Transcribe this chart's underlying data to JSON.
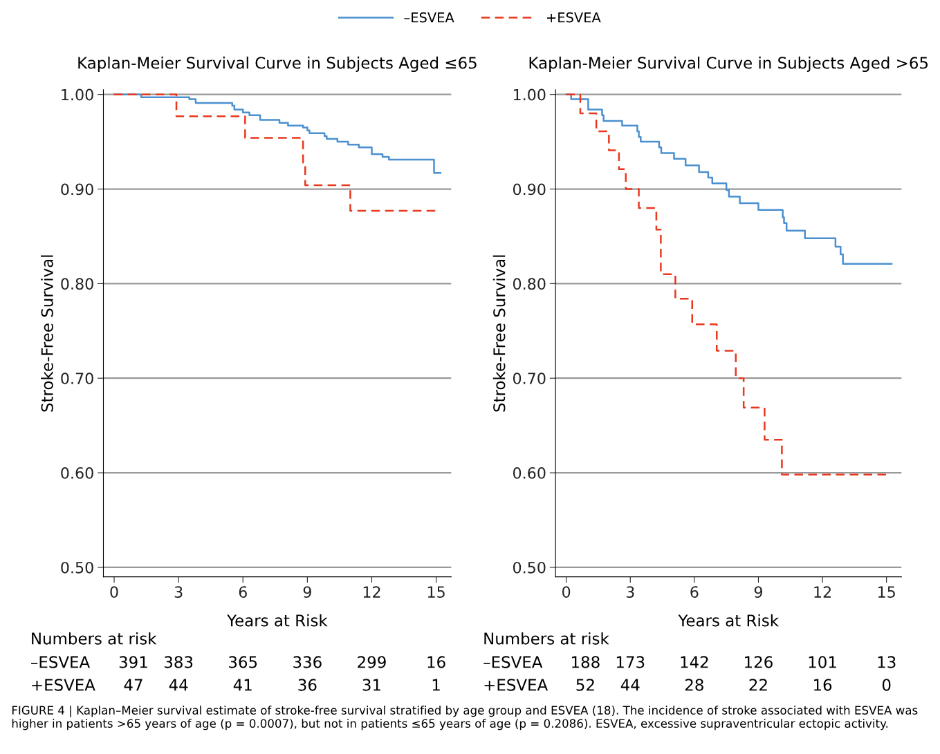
{
  "chart_data": [
    {
      "type": "step",
      "title": "Kaplan-Meier Survival Curve in Subjects Aged ≤65",
      "xlabel": "Years at Risk",
      "ylabel": "Stroke-Free Survival",
      "xlim": [
        -0.5,
        15.7
      ],
      "ylim": [
        0.49,
        1.005
      ],
      "xticks": [
        0,
        3,
        6,
        9,
        12,
        15
      ],
      "yticks": [
        {
          "value": 0.5,
          "label": "0.50"
        },
        {
          "value": 0.6,
          "label": "0.60"
        },
        {
          "value": 0.7,
          "label": "0.70"
        },
        {
          "value": 0.8,
          "label": "0.80"
        },
        {
          "value": 0.9,
          "label": "0.90"
        },
        {
          "value": 1.0,
          "label": "1.00"
        }
      ],
      "grid": "y",
      "legend": "top",
      "marker": "none",
      "series": [
        {
          "name": "–ESVEA",
          "color": "#4a90d0",
          "line_style": "solid",
          "x": [
            0,
            1.26,
            3.5,
            3.8,
            5.5,
            5.6,
            6.0,
            6.3,
            6.8,
            7.7,
            8.1,
            8.8,
            9.0,
            9.1,
            9.8,
            9.9,
            10.4,
            10.9,
            11.4,
            12.0,
            12.5,
            12.8,
            14.9,
            15.2
          ],
          "values": [
            1.0,
            0.997,
            0.995,
            0.991,
            0.988,
            0.984,
            0.981,
            0.978,
            0.973,
            0.97,
            0.967,
            0.965,
            0.962,
            0.959,
            0.956,
            0.953,
            0.95,
            0.947,
            0.944,
            0.937,
            0.934,
            0.931,
            0.917,
            0.917
          ]
        },
        {
          "name": "+ESVEA",
          "color": "#e8381e",
          "line_style": "dashed",
          "x": [
            0,
            2.9,
            6.1,
            8.8,
            8.9,
            11.0,
            15.05
          ],
          "values": [
            1.0,
            0.977,
            0.954,
            0.928,
            0.904,
            0.877,
            0.877
          ]
        }
      ],
      "annotations": [
        "Numbers at risk",
        "–ESVEA",
        "391",
        "383",
        "365",
        "336",
        "299",
        "16",
        "+ESVEA",
        "47",
        "44",
        "41",
        "36",
        "31",
        "1",
        "FIGURE 4 | Kaplan–Meier survival estimate of stroke-free survival stratified by age group and ESVEA (18). The incidence of stroke associated with ESVEA was higher in patients >65 years of age (p = 0.0007), but not in patients ≤65 years of age (p = 0.2086). ESVEA, excessive supraventricular ectopic activity."
      ]
    },
    {
      "type": "step",
      "title": "Kaplan-Meier Survival Curve in Subjects Aged >65",
      "xlabel": "Years at Risk",
      "ylabel": "Stroke-Free Survival",
      "xlim": [
        -0.5,
        15.7
      ],
      "ylim": [
        0.49,
        1.005
      ],
      "xticks": [
        0,
        3,
        6,
        9,
        12,
        15
      ],
      "yticks": [
        {
          "value": 0.5,
          "label": "0.50"
        },
        {
          "value": 0.6,
          "label": "0.60"
        },
        {
          "value": 0.7,
          "label": "0.70"
        },
        {
          "value": 0.8,
          "label": "0.80"
        },
        {
          "value": 0.9,
          "label": "0.90"
        },
        {
          "value": 1.0,
          "label": "1.00"
        }
      ],
      "grid": "y",
      "marker": "none",
      "series": [
        {
          "color": "#4a90d0",
          "line_style": "solid",
          "x": [
            0,
            0.23,
            1.03,
            1.68,
            1.75,
            2.62,
            3.33,
            3.4,
            3.49,
            4.35,
            4.45,
            5.05,
            5.59,
            6.22,
            6.65,
            6.84,
            7.5,
            7.62,
            8.13,
            9.0,
            10.14,
            10.2,
            10.32,
            11.18,
            12.61,
            12.85,
            12.96,
            15.24
          ],
          "values": [
            1.0,
            0.995,
            0.984,
            0.978,
            0.972,
            0.967,
            0.961,
            0.955,
            0.95,
            0.944,
            0.938,
            0.932,
            0.925,
            0.918,
            0.912,
            0.906,
            0.899,
            0.892,
            0.885,
            0.878,
            0.87,
            0.864,
            0.856,
            0.848,
            0.839,
            0.831,
            0.821,
            0.821
          ]
        },
        {
          "color": "#e8381e",
          "line_style": "dashed",
          "x": [
            0,
            0.66,
            1.41,
            2.0,
            2.47,
            2.79,
            3.4,
            4.22,
            4.43,
            5.11,
            5.9,
            7.05,
            7.94,
            8.31,
            9.29,
            10.1,
            15.0
          ],
          "values": [
            1.0,
            0.98,
            0.961,
            0.941,
            0.921,
            0.9,
            0.88,
            0.857,
            0.81,
            0.784,
            0.757,
            0.729,
            0.7,
            0.669,
            0.635,
            0.598,
            0.598
          ]
        }
      ],
      "annotations": [
        "Numbers at risk",
        "–ESVEA",
        "188",
        "173",
        "142",
        "126",
        "101",
        "13",
        "+ESVEA",
        "52",
        "44",
        "28",
        "22",
        "16",
        "0"
      ]
    }
  ]
}
